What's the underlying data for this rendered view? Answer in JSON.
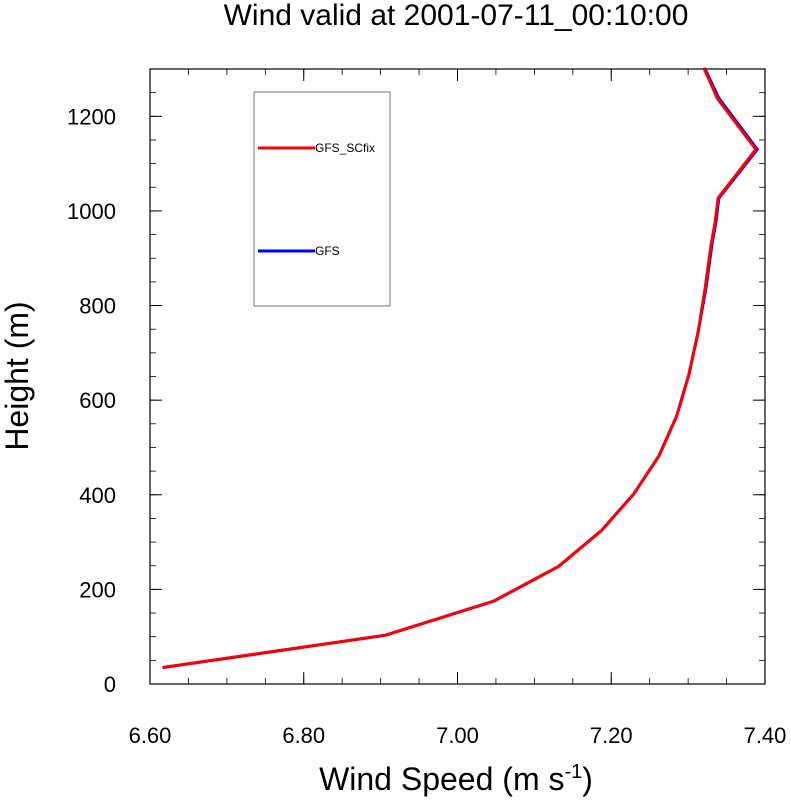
{
  "chart_data": {
    "type": "line",
    "title": "Wind valid at 2001-07-11_00:10:00",
    "xlabel": "Wind Speed (m s",
    "xlabel_sup": "-1",
    "xlabel_end": ")",
    "ylabel": "Height (m)",
    "xlim": [
      6.6,
      7.4
    ],
    "ylim": [
      0,
      1300
    ],
    "xticks": [
      "6.60",
      "6.80",
      "7.00",
      "7.20",
      "7.40"
    ],
    "xtick_values": [
      6.6,
      6.8,
      7.0,
      7.2,
      7.4
    ],
    "yticks": [
      "0",
      "200",
      "400",
      "600",
      "800",
      "1000",
      "1200"
    ],
    "ytick_values": [
      0,
      200,
      400,
      600,
      800,
      1000,
      1200
    ],
    "grid": false,
    "legend_position": "top-left",
    "series": [
      {
        "name": "GFS",
        "color": "#0000ff",
        "x": [
          6.618,
          6.906,
          7.047,
          7.131,
          7.187,
          7.229,
          7.262,
          7.285,
          7.301,
          7.313,
          7.323,
          7.331,
          7.336,
          7.34,
          7.39,
          7.34,
          7.322
        ],
        "y": [
          35,
          103,
          175,
          248,
          324,
          401,
          482,
          566,
          654,
          744,
          835,
          930,
          975,
          1027,
          1130,
          1238,
          1300
        ]
      },
      {
        "name": "GFS_SCfix",
        "color": "#ff0000",
        "x": [
          6.618,
          6.906,
          7.047,
          7.131,
          7.187,
          7.229,
          7.262,
          7.285,
          7.301,
          7.313,
          7.322,
          7.33,
          7.335,
          7.339,
          7.388,
          7.338,
          7.321
        ],
        "y": [
          35,
          103,
          175,
          248,
          324,
          401,
          482,
          566,
          654,
          744,
          835,
          930,
          975,
          1027,
          1130,
          1238,
          1300
        ]
      }
    ],
    "legend": [
      {
        "label": "GFS_SCfix",
        "color": "#ff0000"
      },
      {
        "label": "GFS",
        "color": "#0000ff"
      }
    ]
  }
}
